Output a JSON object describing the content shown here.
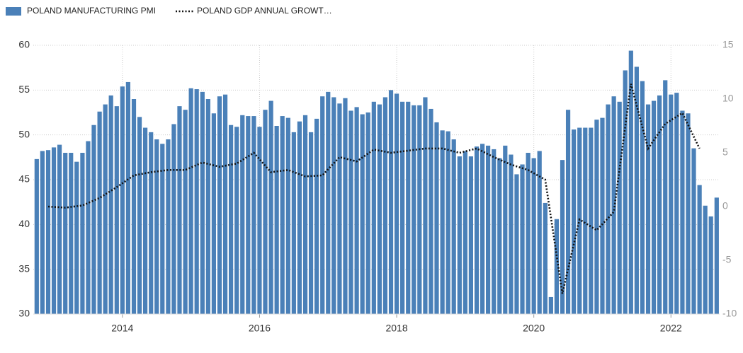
{
  "chart_data": {
    "type": "bar",
    "xlim": [
      2012.7,
      2022.71
    ],
    "xticks": [
      2014,
      2016,
      2018,
      2020,
      2022
    ],
    "ylim": [
      30,
      60
    ],
    "yticks": [
      30,
      35,
      40,
      45,
      50,
      55,
      60
    ],
    "y2lim": [
      -10,
      15
    ],
    "y2ticks": [
      -10,
      -5,
      0,
      5,
      10,
      15
    ],
    "grid": true,
    "legend": "top-left",
    "series": [
      {
        "name": "POLAND MANUFACTURING PMI",
        "type": "bar",
        "color": "#4a80b8",
        "x": [
          2012.75,
          2012.833,
          2012.917,
          2013,
          2013.083,
          2013.167,
          2013.25,
          2013.333,
          2013.417,
          2013.5,
          2013.583,
          2013.667,
          2013.75,
          2013.833,
          2013.917,
          2014,
          2014.083,
          2014.167,
          2014.25,
          2014.333,
          2014.417,
          2014.5,
          2014.583,
          2014.667,
          2014.75,
          2014.833,
          2014.917,
          2015,
          2015.083,
          2015.167,
          2015.25,
          2015.333,
          2015.417,
          2015.5,
          2015.583,
          2015.667,
          2015.75,
          2015.833,
          2015.917,
          2016,
          2016.083,
          2016.167,
          2016.25,
          2016.333,
          2016.417,
          2016.5,
          2016.583,
          2016.667,
          2016.75,
          2016.833,
          2016.917,
          2017,
          2017.083,
          2017.167,
          2017.25,
          2017.333,
          2017.417,
          2017.5,
          2017.583,
          2017.667,
          2017.75,
          2017.833,
          2017.917,
          2018,
          2018.083,
          2018.167,
          2018.25,
          2018.333,
          2018.417,
          2018.5,
          2018.583,
          2018.667,
          2018.75,
          2018.833,
          2018.917,
          2019,
          2019.083,
          2019.167,
          2019.25,
          2019.333,
          2019.417,
          2019.5,
          2019.583,
          2019.667,
          2019.75,
          2019.833,
          2019.917,
          2020,
          2020.083,
          2020.167,
          2020.25,
          2020.333,
          2020.417,
          2020.5,
          2020.583,
          2020.667,
          2020.75,
          2020.833,
          2020.917,
          2021,
          2021.083,
          2021.167,
          2021.25,
          2021.333,
          2021.417,
          2021.5,
          2021.583,
          2021.667,
          2021.75,
          2021.833,
          2021.917,
          2022,
          2022.083,
          2022.167,
          2022.25,
          2022.333,
          2022.417,
          2022.5,
          2022.583,
          2022.667
        ],
        "values": [
          47.3,
          48.2,
          48.3,
          48.6,
          48.9,
          48.0,
          48.0,
          47.0,
          48.0,
          49.3,
          51.1,
          52.6,
          53.4,
          54.4,
          53.2,
          55.4,
          55.9,
          54.0,
          52.0,
          50.8,
          50.3,
          49.5,
          49.0,
          49.5,
          51.2,
          53.2,
          52.8,
          55.2,
          55.1,
          54.8,
          54.0,
          52.4,
          54.3,
          54.5,
          51.1,
          50.9,
          52.2,
          52.1,
          52.1,
          50.9,
          52.8,
          53.8,
          51.0,
          52.1,
          51.9,
          50.3,
          51.5,
          52.2,
          50.3,
          51.8,
          54.3,
          54.8,
          54.2,
          53.5,
          54.1,
          52.7,
          53.1,
          52.3,
          52.5,
          53.7,
          53.4,
          54.2,
          55.0,
          54.6,
          53.7,
          53.7,
          53.3,
          53.3,
          54.2,
          52.9,
          51.4,
          50.5,
          50.4,
          49.5,
          47.6,
          48.2,
          47.6,
          48.7,
          49.0,
          48.8,
          48.4,
          47.4,
          48.8,
          47.8,
          45.6,
          46.7,
          48.0,
          47.4,
          48.2,
          42.4,
          31.9,
          40.6,
          47.2,
          52.8,
          50.6,
          50.8,
          50.8,
          50.8,
          51.7,
          51.9,
          53.4,
          54.3,
          53.7,
          57.2,
          59.4,
          57.6,
          56.0,
          53.4,
          53.8,
          54.4,
          56.1,
          54.5,
          54.7,
          52.7,
          52.4,
          48.5,
          44.4,
          42.1,
          40.9,
          43.0
        ]
      },
      {
        "name": "POLAND GDP ANNUAL GROWT…",
        "type": "line",
        "axis": "y2",
        "color": "#111111",
        "dash": "dotted",
        "x": [
          2012.917,
          2013.167,
          2013.417,
          2013.667,
          2013.917,
          2014.167,
          2014.417,
          2014.667,
          2014.917,
          2015.167,
          2015.417,
          2015.667,
          2015.917,
          2016.167,
          2016.417,
          2016.667,
          2016.917,
          2017.167,
          2017.417,
          2017.667,
          2017.917,
          2018.167,
          2018.417,
          2018.667,
          2018.917,
          2019.167,
          2019.417,
          2019.667,
          2019.917,
          2020.167,
          2020.417,
          2020.667,
          2020.917,
          2021.167,
          2021.417,
          2021.667,
          2021.917,
          2022.167,
          2022.417
        ],
        "values": [
          0.0,
          -0.1,
          0.1,
          0.8,
          1.8,
          2.9,
          3.2,
          3.4,
          3.4,
          4.1,
          3.7,
          4.0,
          5.0,
          3.2,
          3.4,
          2.8,
          2.9,
          4.6,
          4.2,
          5.3,
          5.0,
          5.2,
          5.4,
          5.4,
          5.0,
          5.4,
          4.6,
          3.9,
          3.4,
          2.5,
          -8.1,
          -1.2,
          -2.2,
          -0.5,
          11.4,
          5.4,
          7.7,
          8.7,
          5.4
        ]
      }
    ]
  }
}
